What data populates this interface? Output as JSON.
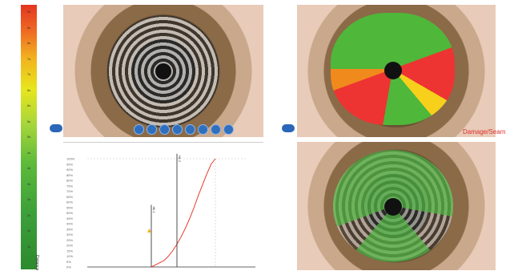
{
  "scale": {
    "ticks": [
      "9s",
      "8s",
      "8s",
      "7s",
      "7s",
      "6s",
      "6s",
      "5s",
      "5s",
      "4s",
      "4s",
      "3s",
      "3s",
      "2s",
      "2s",
      "1s"
    ],
    "axis_label": "Distance",
    "colors": {
      "top": "#e3351f",
      "mid": "#e7e61d",
      "bottom": "#2d8a2e"
    }
  },
  "viewer_buttons": [
    "zoom-in",
    "zoom-out",
    "rotate-left",
    "rotate-right",
    "reset",
    "overlay",
    "export",
    "settings"
  ],
  "right_panel": {
    "damage_label": "Damage/Seam"
  },
  "chart_data": {
    "type": "line",
    "title": "",
    "xlabel": "",
    "ylabel": "",
    "ylim": [
      0,
      100
    ],
    "yticks": [
      "100%",
      "95%",
      "90%",
      "85%",
      "80%",
      "75%",
      "70%",
      "65%",
      "60%",
      "55%",
      "50%",
      "45%",
      "40%",
      "35%",
      "30%",
      "25%",
      "20%",
      "15%",
      "10%",
      "5%",
      "0%"
    ],
    "series": [
      {
        "x": [
          0,
          5,
          10,
          15,
          20,
          25,
          30,
          35,
          40,
          45,
          50,
          55,
          60,
          65,
          70,
          75
        ],
        "y": [
          0,
          2,
          4,
          6,
          10,
          15,
          21,
          28,
          36,
          45,
          55,
          66,
          76,
          86,
          95,
          100
        ]
      }
    ],
    "markers": [
      {
        "label": "Hk 1",
        "x": 0,
        "y": 50
      },
      {
        "label": "Hk 2",
        "x": 30,
        "y": 75
      }
    ],
    "colors": {
      "line": "#e53b2b",
      "grid": "#c8c8c8"
    }
  }
}
